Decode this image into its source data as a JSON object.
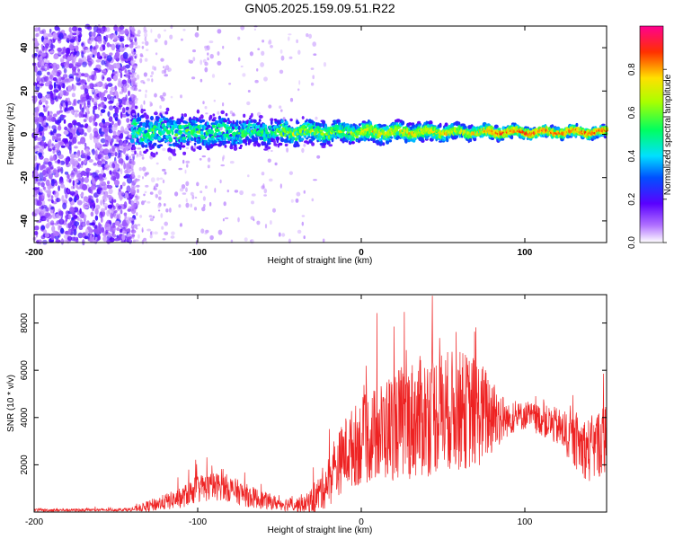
{
  "figure": {
    "title": "GN05.2025.159.09.51.R22"
  },
  "chart_data": [
    {
      "type": "heatmap",
      "xlabel": "Height of straight line (km)",
      "ylabel": "Frequency (Hz)",
      "xlim": [
        -200,
        150
      ],
      "ylim": [
        -50,
        50
      ],
      "x_ticks": [
        -200,
        -100,
        0,
        100
      ],
      "y_ticks": [
        -40,
        -20,
        0,
        20,
        40
      ],
      "colorbar": {
        "label": "Normalized spectral amplitude",
        "range": [
          0,
          1
        ],
        "ticks": [
          0.0,
          0.2,
          0.4,
          0.6,
          0.8
        ],
        "colors": [
          "#ffffff",
          "#7000ff",
          "#0040ff",
          "#00e0ff",
          "#00ff40",
          "#ffff00",
          "#ff0000",
          "#ff0080"
        ]
      },
      "description_points": {
        "noise_region": [
          -200,
          -140
        ],
        "signal_center_hz": 1,
        "signal_band_hz": [
          [
            -140,
            8
          ],
          [
            -50,
            5
          ],
          [
            0,
            4
          ],
          [
            100,
            2
          ],
          [
            150,
            2
          ]
        ],
        "peak_amplitude_region": [
          75,
          150
        ]
      }
    },
    {
      "type": "line",
      "xlabel": "Height of straight line (km)",
      "ylabel": "SNR (10 * v/v)",
      "xlim": [
        -200,
        150
      ],
      "ylim": [
        0,
        9200
      ],
      "x_ticks": [
        -200,
        -100,
        0,
        100
      ],
      "y_ticks": [
        2000,
        4000,
        6000,
        8000
      ],
      "series": [
        {
          "color": "#ee2222",
          "envelope_x": [
            -200,
            -150,
            -140,
            -130,
            -110,
            -100,
            -85,
            -70,
            -60,
            -50,
            -35,
            -28,
            -20,
            -10,
            0,
            10,
            20,
            30,
            40,
            50,
            60,
            70,
            80,
            90,
            100,
            110,
            120,
            130,
            140,
            150
          ],
          "envelope_base": [
            80,
            90,
            110,
            250,
            600,
            1000,
            1100,
            700,
            500,
            350,
            300,
            600,
            1300,
            2500,
            3000,
            3300,
            3700,
            3900,
            4100,
            4300,
            4300,
            4200,
            4100,
            3900,
            4100,
            3900,
            3600,
            3000,
            2600,
            3200
          ],
          "envelope_spread": [
            120,
            100,
            150,
            450,
            800,
            1100,
            1100,
            900,
            700,
            500,
            600,
            1200,
            2000,
            2800,
            3400,
            3800,
            4300,
            4600,
            4800,
            4700,
            4600,
            4400,
            3200,
            1200,
            1100,
            1200,
            1500,
            2000,
            2600,
            2800
          ]
        }
      ]
    }
  ]
}
